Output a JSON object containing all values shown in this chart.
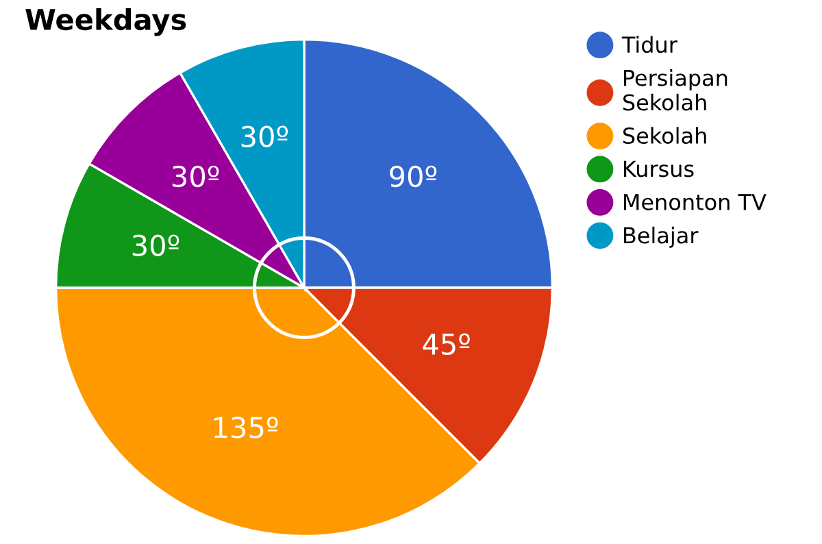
{
  "chart_data": {
    "type": "pie",
    "title": "Weekdays",
    "categories": [
      "Tidur",
      "Persiapan\nSekolah",
      "Sekolah",
      "Kursus",
      "Menonton TV",
      "Belajar"
    ],
    "values": [
      90,
      45,
      135,
      30,
      30,
      30
    ],
    "value_labels": [
      "90º",
      "45º",
      "135º",
      "30º",
      "30º",
      "30º"
    ],
    "colors": [
      "#3366cc",
      "#dc3912",
      "#ff9900",
      "#109618",
      "#990099",
      "#0099c6"
    ],
    "legend": "right"
  }
}
